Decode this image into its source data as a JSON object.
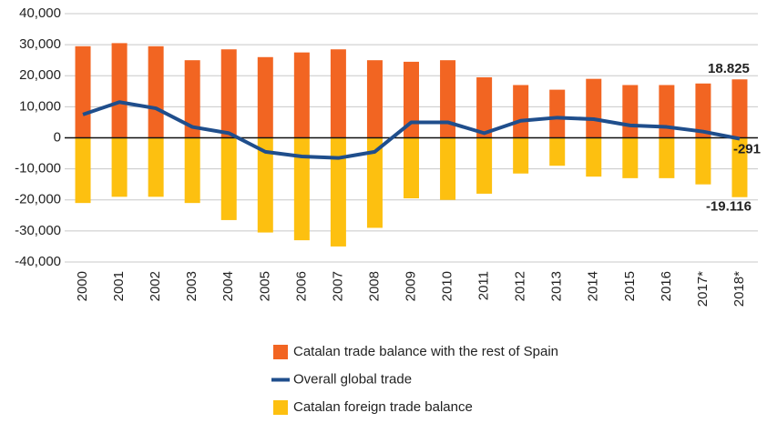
{
  "chart_data": {
    "type": "bar",
    "categories": [
      "2000",
      "2001",
      "2002",
      "2003",
      "2004",
      "2005",
      "2006",
      "2007",
      "2008",
      "2009",
      "2010",
      "2011",
      "2012",
      "2013",
      "2014",
      "2015",
      "2016",
      "2017*",
      "2018*"
    ],
    "series": [
      {
        "name": "Catalan trade balance with the rest of Spain",
        "type": "bar",
        "color": "#f26522",
        "values": [
          29500,
          30500,
          29500,
          25000,
          28500,
          26000,
          27500,
          28500,
          25000,
          24500,
          25000,
          19500,
          17000,
          15500,
          19000,
          17000,
          17000,
          17500,
          18825
        ],
        "value_labels": [
          null,
          null,
          null,
          null,
          null,
          null,
          null,
          null,
          null,
          null,
          null,
          null,
          null,
          null,
          null,
          null,
          null,
          null,
          "18.825"
        ]
      },
      {
        "name": "Overall global trade",
        "type": "line",
        "color": "#1f4e8c",
        "values": [
          7500,
          11500,
          9500,
          3500,
          1500,
          -4500,
          -6000,
          -6500,
          -4500,
          5000,
          5000,
          1500,
          5500,
          6500,
          6000,
          4000,
          3500,
          2000,
          -291
        ]
      },
      {
        "name": "Catalan foreign trade balance",
        "type": "bar",
        "color": "#fdc010",
        "values": [
          -21000,
          -19000,
          -19000,
          -21000,
          -26500,
          -30500,
          -33000,
          -35000,
          -29000,
          -19500,
          -20000,
          -18000,
          -11500,
          -9000,
          -12500,
          -13000,
          -13000,
          -15000,
          -19116
        ],
        "value_labels": [
          null,
          null,
          null,
          null,
          null,
          null,
          null,
          null,
          null,
          null,
          null,
          null,
          null,
          null,
          null,
          null,
          null,
          null,
          "-19.116"
        ]
      }
    ],
    "ylim": [
      -40000,
      40000
    ],
    "yticks": [
      {
        "value": -40000,
        "label": "-40,000"
      },
      {
        "value": -30000,
        "label": "-30,000"
      },
      {
        "value": -20000,
        "label": "-20,000"
      },
      {
        "value": -10000,
        "label": "-10,000"
      },
      0,
      {
        "value": 10000,
        "label": "10,000"
      },
      {
        "value": 20000,
        "label": "20,000"
      },
      {
        "value": 30000,
        "label": "30,000"
      },
      {
        "value": 40000,
        "label": "40,000"
      }
    ],
    "grid": true
  }
}
